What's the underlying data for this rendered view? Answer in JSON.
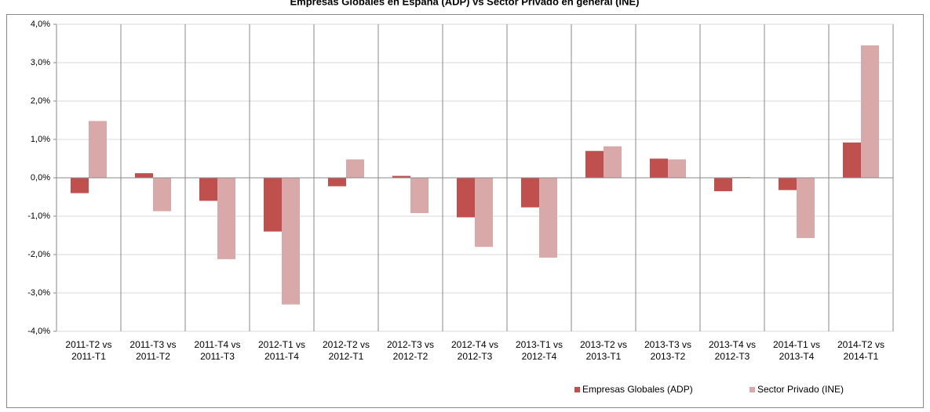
{
  "chart_data": {
    "type": "bar",
    "title": "Empresas Globales en España (ADP) vs Sector Privado en general (INE)",
    "categories": [
      "2011-T2 vs 2011-T1",
      "2011-T3 vs 2011-T2",
      "2011-T4 vs 2011-T3",
      "2012-T1 vs 2011-T4",
      "2012-T2 vs 2012-T1",
      "2012-T3 vs 2012-T2",
      "2012-T4 vs 2012-T3",
      "2013-T1 vs 2012-T4",
      "2013-T2 vs 2013-T1",
      "2013-T3 vs 2013-T2",
      "2013-T4 vs 2012-T3",
      "2014-T1 vs 2013-T4",
      "2014-T2 vs 2014-T1"
    ],
    "series": [
      {
        "name": "Empresas Globales (ADP)",
        "color": "#c0504d",
        "values": [
          -0.4,
          0.12,
          -0.6,
          -1.4,
          -0.22,
          0.05,
          -1.03,
          -0.77,
          0.7,
          0.5,
          -0.35,
          -0.32,
          0.92
        ]
      },
      {
        "name": "Sector Privado (INE)",
        "color": "#d9a9aa",
        "values": [
          1.48,
          -0.87,
          -2.12,
          -3.3,
          0.48,
          -0.92,
          -1.8,
          -2.08,
          0.82,
          0.48,
          0.02,
          -1.57,
          3.45
        ]
      }
    ],
    "ylim": [
      -4,
      4
    ],
    "yticks": [
      {
        "value": -4,
        "label": "-4,0%"
      },
      {
        "value": -3,
        "label": "-3,0%"
      },
      {
        "value": -2,
        "label": "-2,0%"
      },
      {
        "value": -1,
        "label": "-1,0%"
      },
      {
        "value": 0,
        "label": "0,0%"
      },
      {
        "value": 1,
        "label": "1,0%"
      },
      {
        "value": 2,
        "label": "2,0%"
      },
      {
        "value": 3,
        "label": "3,0%"
      },
      {
        "value": 4,
        "label": "4,0%"
      }
    ],
    "grid": true,
    "legend": "bottom"
  }
}
